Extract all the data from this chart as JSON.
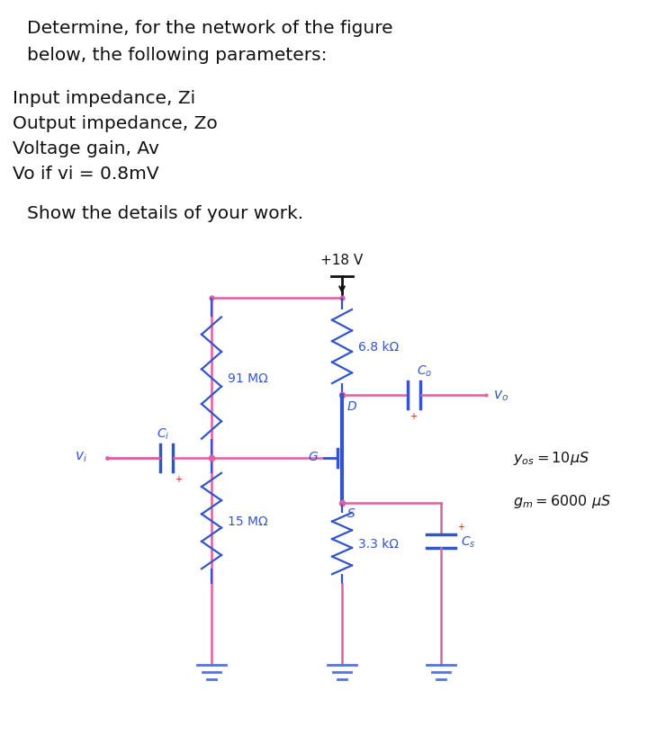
{
  "title_line1": "Determine, for the network of the figure",
  "title_line2": "below, the following parameters:",
  "param1": "Input impedance, Zi",
  "param2": "Output impedance, Zo",
  "param3": "Voltage gain, Av",
  "param4": "Vo if vi = 0.8mV",
  "show_text": "Show the details of your work.",
  "supply_label": "+18 V",
  "R1_label": "91 MΩ",
  "R2_label": "15 MΩ",
  "RD_label": "6.8 kΩ",
  "RS_label": "3.3 kΩ",
  "D_label": "D",
  "G_label": "G",
  "S_label": "S",
  "vi_label": "v_i",
  "vo_label": "v_o",
  "Co_label": "C_o",
  "Ci_label": "C_i",
  "Cs_label": "C_s",
  "yos_label": "y_{os} = 10\\mu S",
  "gm_label": "g_m = 6000 \\mu S",
  "bg_color": "#ffffff",
  "pink": "#e060a0",
  "blue": "#3355cc",
  "red": "#cc2200",
  "black": "#111111",
  "gnd_color": "#5577cc"
}
